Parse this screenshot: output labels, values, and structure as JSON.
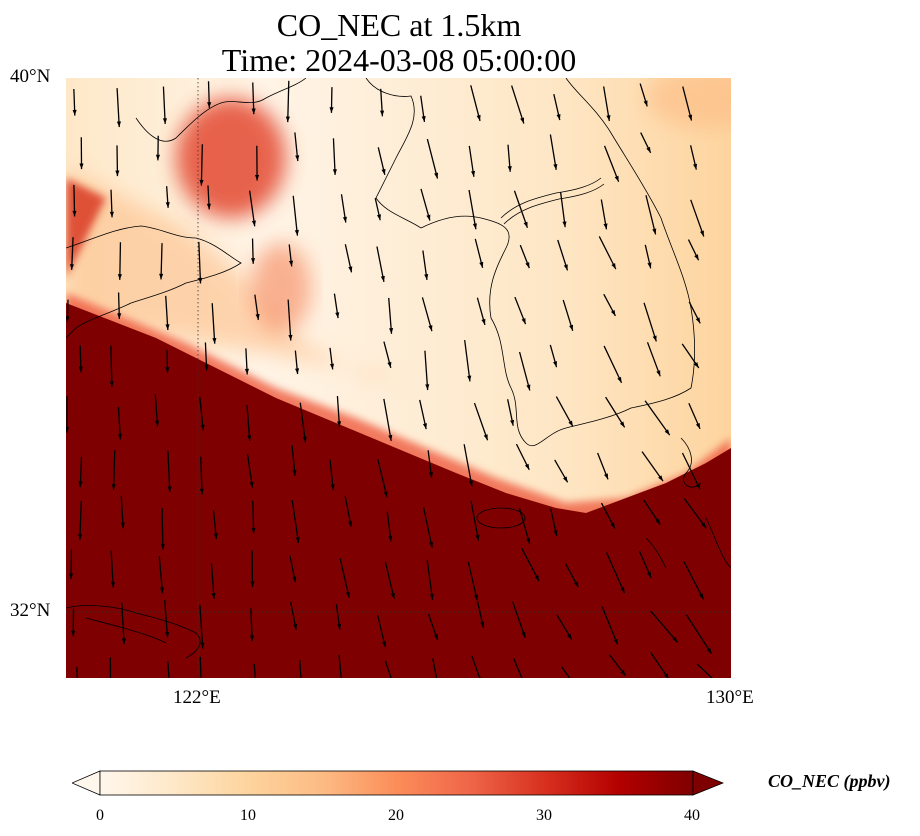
{
  "title": {
    "line1": "CO_NEC at 1.5km",
    "line2": "Time: 2024-03-08 05:00:00"
  },
  "axes": {
    "lat_ticks": [
      "40°N",
      "32°N"
    ],
    "lon_ticks": [
      "122°E",
      "130°E"
    ],
    "lat_range": [
      31,
      40
    ],
    "lon_range": [
      120,
      130
    ]
  },
  "colorbar": {
    "label": "CO_NEC (ppbv)",
    "ticks": [
      "0",
      "10",
      "20",
      "30",
      "40"
    ],
    "range": [
      0,
      40
    ],
    "extend": "both",
    "colormap": "OrRd",
    "colors": [
      "#fff7ec",
      "#fee8c8",
      "#fdd49e",
      "#fdbb84",
      "#fc8d59",
      "#ef6548",
      "#d7301f",
      "#b30000",
      "#7f0000"
    ]
  },
  "map": {
    "projection": "PlateCarree",
    "gridlines": "dotted",
    "wind_vectors": "north-northwesterly, shown as black arrows",
    "field": "CO concentration (ppbv), high (>40) south of a front running from ~37°N,120°E to ~34.5°N,130°E; low values over the Yellow Sea, Korea and the Bohai region, enhanced patch near 38.5°N,122°E"
  }
}
